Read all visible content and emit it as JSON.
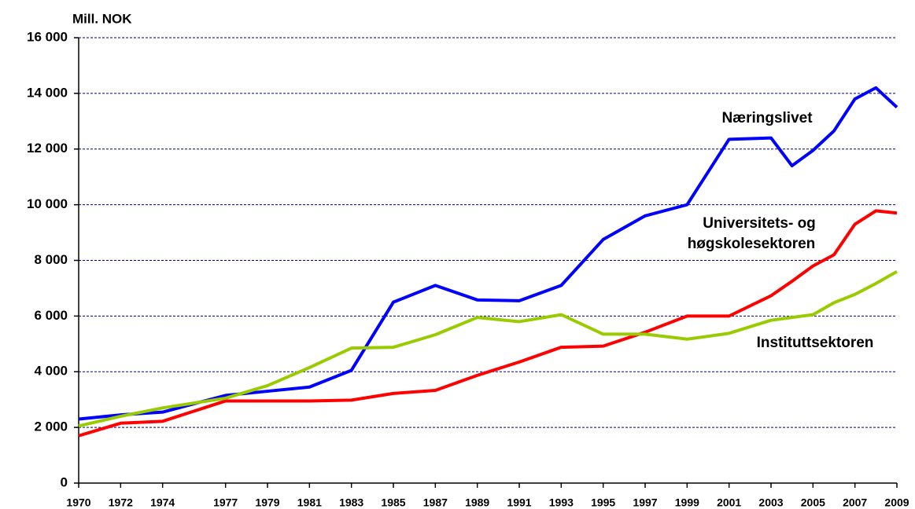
{
  "chart_data": {
    "type": "line",
    "y_label": "Mill. NOK",
    "x": [
      1970,
      1972,
      1974,
      1977,
      1979,
      1981,
      1983,
      1985,
      1987,
      1989,
      1991,
      1993,
      1995,
      1997,
      1999,
      2001,
      2003,
      2004,
      2005,
      2006,
      2007,
      2008,
      2009
    ],
    "series": [
      {
        "color": "#0000ff",
        "values": [
          2300,
          2450,
          2550,
          3150,
          3300,
          3450,
          4050,
          6500,
          7100,
          6580,
          6550,
          7100,
          8750,
          9600,
          10000,
          12350,
          12400,
          11400,
          11950,
          12650,
          13800,
          14200,
          13500
        ]
      },
      {
        "color": "#ff0000",
        "values": [
          1700,
          2150,
          2220,
          2950,
          2950,
          2950,
          2980,
          3220,
          3330,
          3870,
          4350,
          4880,
          4920,
          5420,
          6000,
          6000,
          6730,
          7250,
          7800,
          8200,
          9300,
          9780,
          9700
        ]
      },
      {
        "color": "#99cc00",
        "values": [
          2050,
          2400,
          2700,
          3050,
          3500,
          4150,
          4850,
          4880,
          5330,
          5950,
          5800,
          6050,
          5350,
          5350,
          5170,
          5380,
          5850,
          5950,
          6050,
          6480,
          6780,
          7170,
          7600
        ]
      }
    ],
    "annotations": [
      "Næringslivet",
      "Universitets- og",
      "høgskolesektoren",
      "Instituttsektoren"
    ],
    "xlim": [
      1970,
      2009
    ],
    "xticks": [
      1970,
      1972,
      1974,
      1977,
      1979,
      1981,
      1983,
      1985,
      1987,
      1989,
      1991,
      1993,
      1995,
      1997,
      1999,
      2001,
      2003,
      2005,
      2007,
      2009
    ],
    "ylim": [
      0,
      16000
    ],
    "yticks": [
      0,
      {
        "value": 2000,
        "label": "2 000"
      },
      {
        "value": 4000,
        "label": "4 000"
      },
      {
        "value": 6000,
        "label": "6 000"
      },
      {
        "value": 8000,
        "label": "8 000"
      },
      {
        "value": 10000,
        "label": "10 000"
      },
      {
        "value": 12000,
        "label": "12 000"
      },
      {
        "value": 14000,
        "label": "14 000"
      },
      {
        "value": 16000,
        "label": "16 000"
      }
    ],
    "grid": true
  }
}
